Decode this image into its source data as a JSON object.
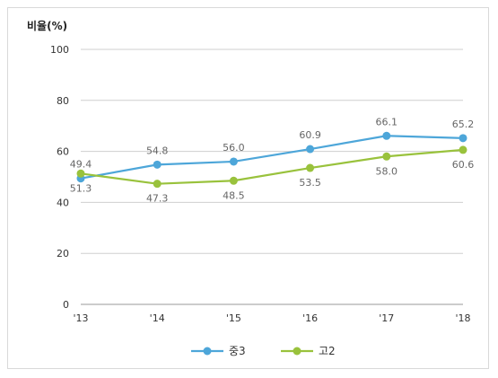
{
  "chart_data": {
    "type": "line",
    "ylabel": "비율(%)",
    "categories": [
      "'13",
      "'14",
      "'15",
      "'16",
      "'17",
      "'18"
    ],
    "ylim": [
      0,
      100
    ],
    "yticks": [
      "0",
      "20",
      "40",
      "60",
      "80",
      "100"
    ],
    "series": [
      {
        "name": "중3",
        "color": "#4da6d9",
        "values": [
          49.4,
          54.8,
          56.0,
          60.9,
          66.1,
          65.2
        ],
        "labels": [
          "49.4",
          "54.8",
          "56.0",
          "60.9",
          "66.1",
          "65.2"
        ]
      },
      {
        "name": "고2",
        "color": "#99c23c",
        "values": [
          51.3,
          47.3,
          48.5,
          53.5,
          58.0,
          60.6
        ],
        "labels": [
          "51.3",
          "47.3",
          "48.5",
          "53.5",
          "58.0",
          "60.6"
        ]
      }
    ],
    "grid": true,
    "legend_position": "bottom-center"
  }
}
